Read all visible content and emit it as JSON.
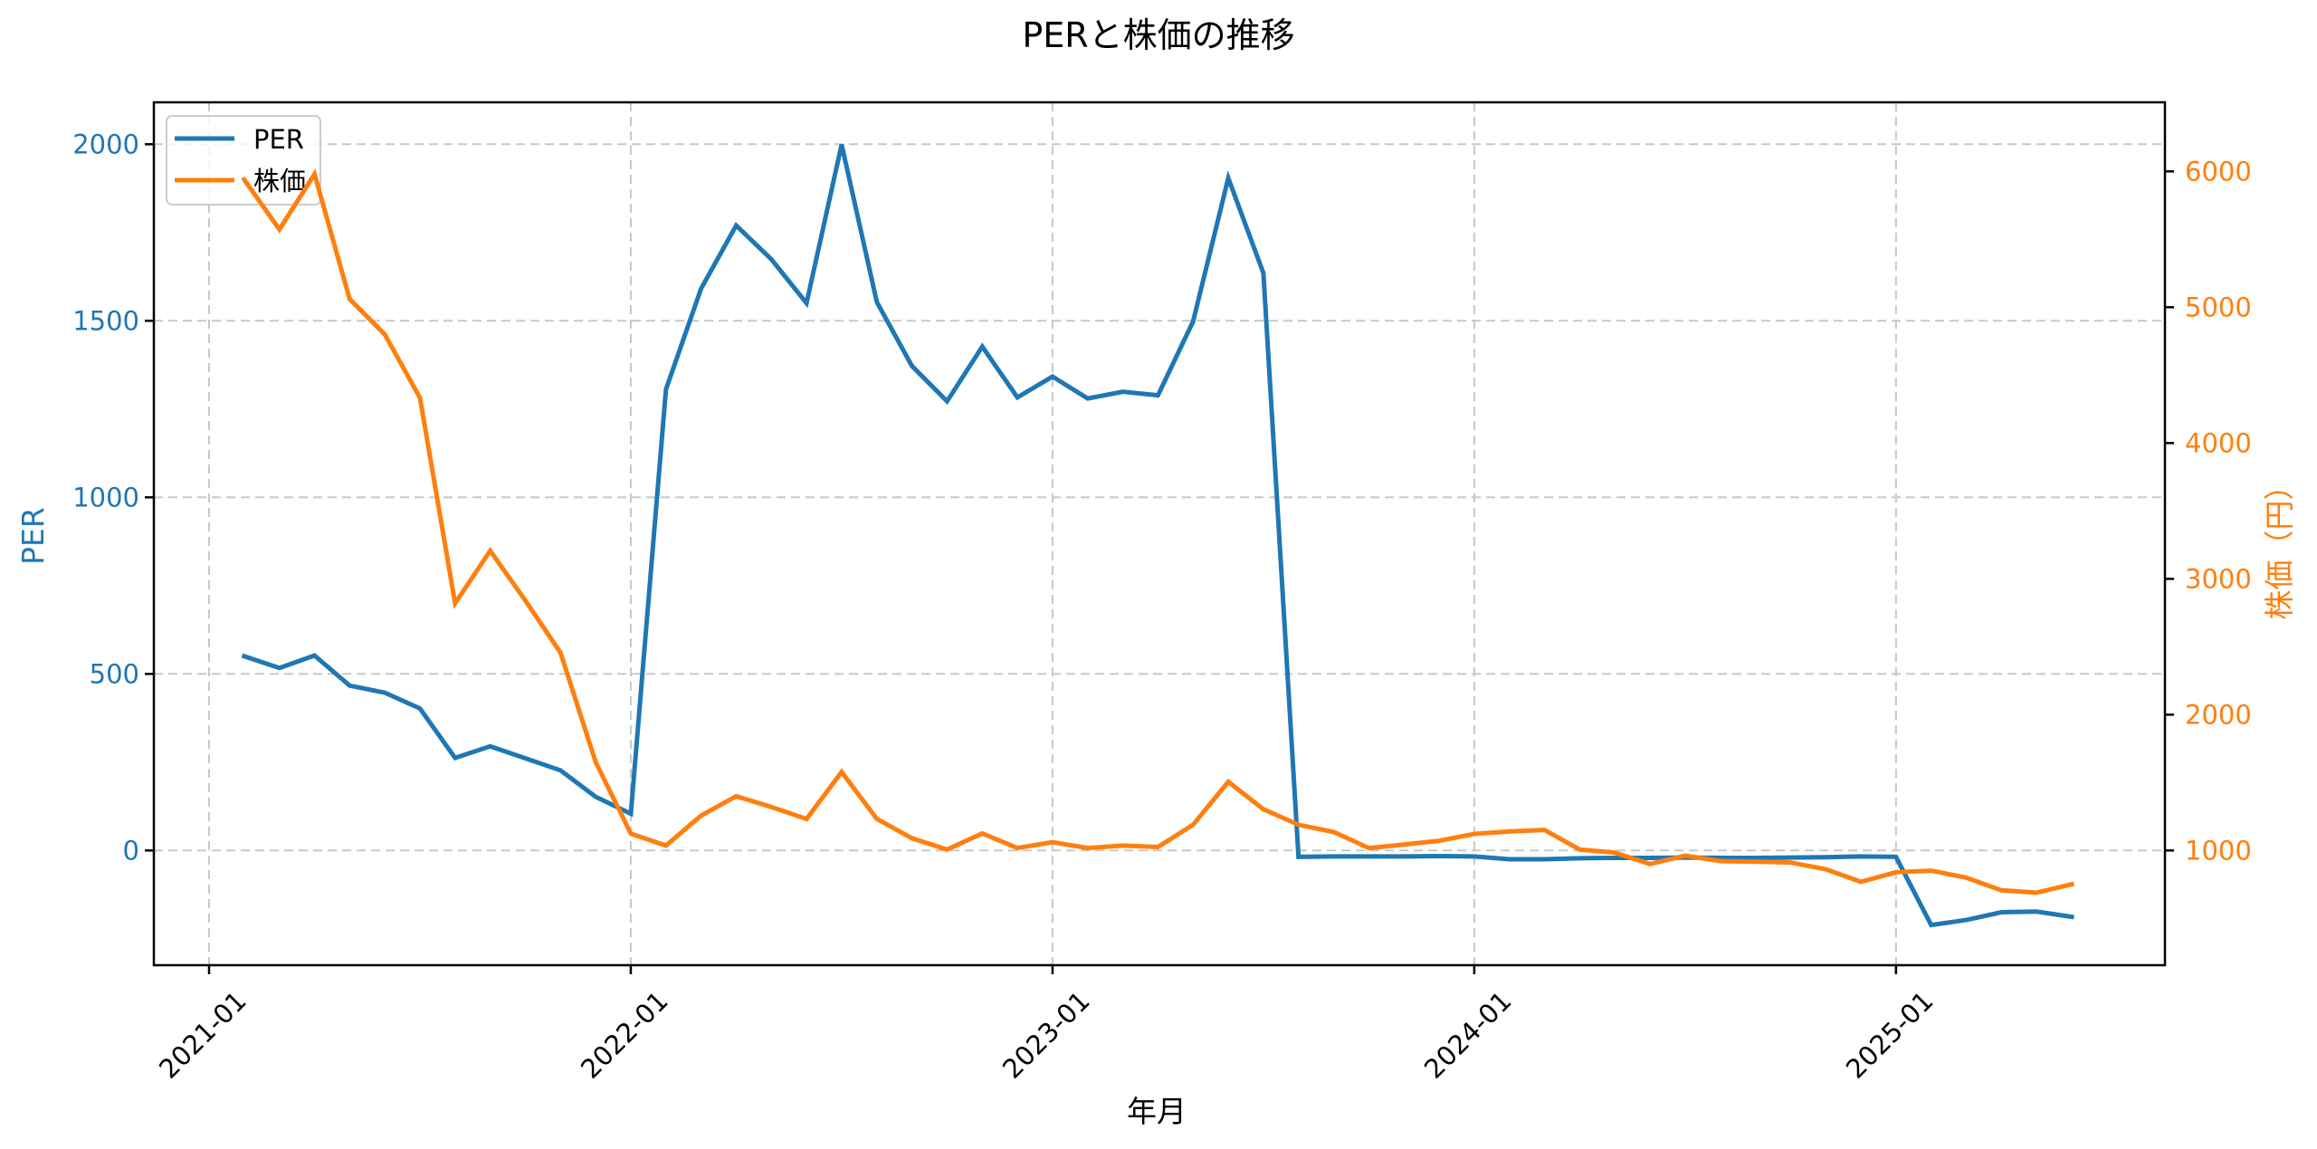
{
  "chart_data": {
    "type": "line",
    "title": "PERと株価の推移",
    "xlabel": "年月",
    "ylabel": "PER",
    "ylabel_right": "株価（円）",
    "x_ticks": [
      "2021-01",
      "2022-01",
      "2023-01",
      "2024-01",
      "2025-01"
    ],
    "y_ticks_left": [
      0,
      500,
      1000,
      1500,
      2000
    ],
    "y_ticks_right": [
      1000,
      2000,
      3000,
      4000,
      5000,
      6000
    ],
    "ylim_left": [
      -326,
      2118
    ],
    "ylim_right": [
      153,
      6507
    ],
    "grid": true,
    "legend_position": "upper left",
    "x": [
      "2021-02",
      "2021-03",
      "2021-04",
      "2021-05",
      "2021-06",
      "2021-07",
      "2021-08",
      "2021-09",
      "2021-10",
      "2021-11",
      "2021-12",
      "2022-01",
      "2022-02",
      "2022-03",
      "2022-04",
      "2022-05",
      "2022-06",
      "2022-07",
      "2022-08",
      "2022-09",
      "2022-10",
      "2022-11",
      "2022-12",
      "2023-01",
      "2023-02",
      "2023-03",
      "2023-04",
      "2023-05",
      "2023-06",
      "2023-07",
      "2023-08",
      "2023-09",
      "2023-10",
      "2023-11",
      "2023-12",
      "2024-01",
      "2024-02",
      "2024-03",
      "2024-04",
      "2024-05",
      "2024-06",
      "2024-07",
      "2024-08",
      "2024-09",
      "2024-10",
      "2024-11",
      "2024-12",
      "2025-01",
      "2025-02",
      "2025-03",
      "2025-04",
      "2025-05",
      "2025-06"
    ],
    "series": [
      {
        "name": "PER",
        "axis": "left",
        "color": "#1f77b4",
        "values": [
          550,
          517,
          552,
          467,
          447,
          402,
          262,
          295,
          261,
          227,
          152,
          104,
          1306,
          1591,
          1770,
          1674,
          1550,
          1999,
          1553,
          1372,
          1272,
          1427,
          1283,
          1342,
          1280,
          1299,
          1289,
          1498,
          1904,
          1635,
          -18,
          -17,
          -17,
          -17,
          -16,
          -17,
          -25,
          -25,
          -22,
          -21,
          -21,
          -20,
          -21,
          -21,
          -20,
          -19,
          -17,
          -18,
          -211,
          -197,
          -175,
          -173,
          -188
        ]
      },
      {
        "name": "株価",
        "axis": "right",
        "color": "#ff7f0e",
        "values": [
          5940,
          5573,
          5980,
          5060,
          4800,
          4333,
          2820,
          3207,
          2840,
          2457,
          1651,
          1124,
          1036,
          1257,
          1400,
          1320,
          1232,
          1578,
          1232,
          1090,
          1007,
          1125,
          1018,
          1061,
          1018,
          1036,
          1025,
          1189,
          1506,
          1303,
          1189,
          1136,
          1018,
          1043,
          1071,
          1122,
          1140,
          1151,
          1007,
          984,
          900,
          962,
          922,
          918,
          911,
          862,
          769,
          840,
          851,
          800,
          707,
          689,
          751
        ]
      }
    ]
  },
  "title": "PERと株価の推移",
  "xlabel": "年月",
  "ylabel_left": "PER",
  "ylabel_right": "株価（円）",
  "legend": [
    {
      "label": "PER",
      "color": "#1f77b4"
    },
    {
      "label": "株価",
      "color": "#ff7f0e"
    }
  ],
  "colors": {
    "per": "#1f77b4",
    "stock": "#ff7f0e",
    "grid": "#c8c8c8",
    "axis": "#000000"
  }
}
